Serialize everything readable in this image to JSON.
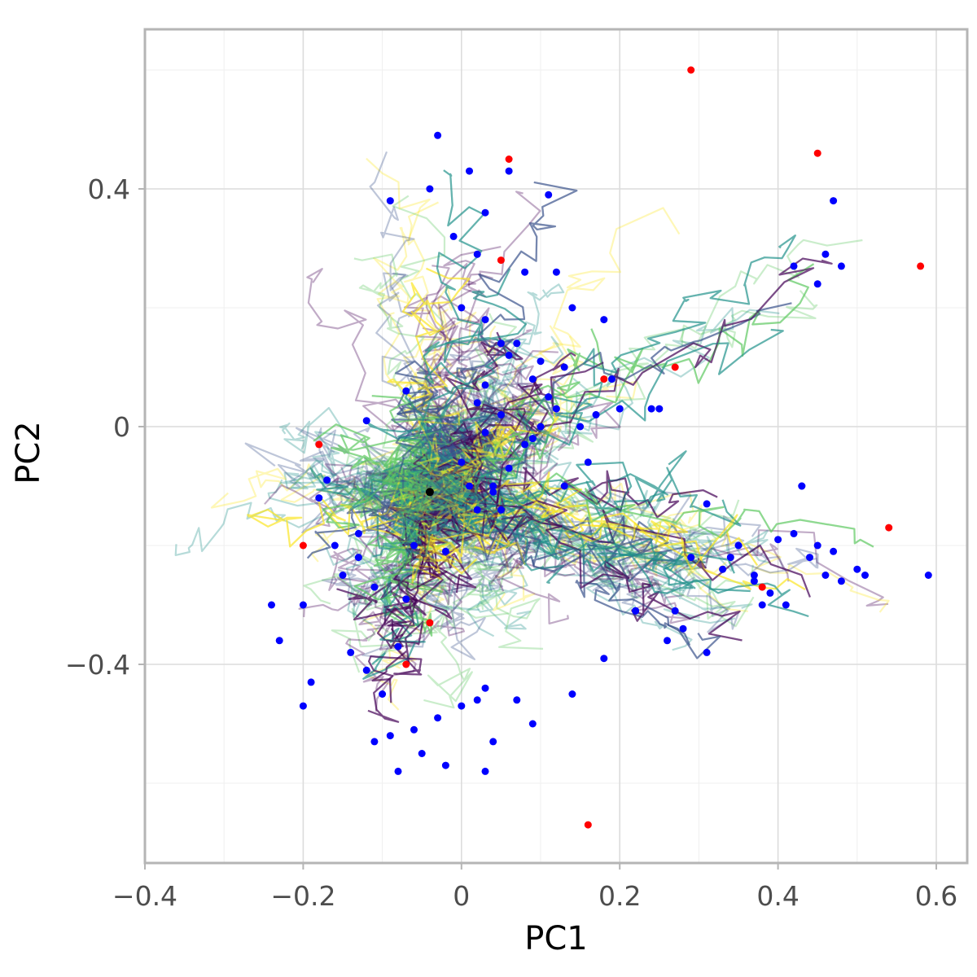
{
  "chart_data": {
    "type": "scatter",
    "title": "",
    "xlabel": "PC1",
    "ylabel": "PC2",
    "xlim": [
      -0.4,
      0.63
    ],
    "ylim": [
      -0.74,
      0.67
    ],
    "x_ticks": [
      -0.4,
      -0.2,
      0,
      0.2,
      0.4,
      0.6
    ],
    "x_tick_labels": [
      "−0.4",
      "−0.2",
      "0",
      "0.2",
      "0.4",
      "0.6"
    ],
    "y_ticks": [
      -0.4,
      0,
      0.4
    ],
    "y_tick_labels": [
      "−0.4",
      "0",
      "0.4"
    ],
    "grid": true,
    "legend": "none",
    "colors": {
      "trajectories_palette": [
        "#440154",
        "#3b528b",
        "#21918c",
        "#5ec962",
        "#fde725"
      ],
      "blue_points": "#0000ff",
      "red_points": "#ff0000",
      "origin_point": "#000000"
    },
    "series": [
      {
        "name": "trajectories",
        "kind": "lines",
        "description_origin": [
          -0.04,
          -0.11
        ],
        "clusters": [
          {
            "center": [
              -0.12,
              -0.12
            ],
            "spread": [
              0.09,
              0.07
            ],
            "weight": 3
          },
          {
            "center": [
              -0.1,
              -0.33
            ],
            "spread": [
              0.07,
              0.1
            ],
            "weight": 3
          },
          {
            "center": [
              0.06,
              0.06
            ],
            "spread": [
              0.07,
              0.09
            ],
            "weight": 3
          },
          {
            "center": [
              0.0,
              0.33
            ],
            "spread": [
              0.08,
              0.07
            ],
            "weight": 1
          },
          {
            "center": [
              0.38,
              -0.25
            ],
            "spread": [
              0.09,
              0.06
            ],
            "weight": 3
          },
          {
            "center": [
              0.45,
              0.27
            ],
            "spread": [
              0.05,
              0.08
            ],
            "weight": 1
          },
          {
            "center": [
              0.1,
              -0.25
            ],
            "spread": [
              0.12,
              0.1
            ],
            "weight": 2
          }
        ]
      },
      {
        "name": "blue_points",
        "kind": "points",
        "x": [
          -0.03,
          0.06,
          0.11,
          -0.09,
          0.01,
          -0.04,
          0.03,
          -0.01,
          0.08,
          0.12,
          0.14,
          0.03,
          0.0,
          0.05,
          0.07,
          0.1,
          0.13,
          0.18,
          0.06,
          0.09,
          0.03,
          -0.07,
          0.02,
          0.11,
          0.05,
          0.12,
          0.15,
          0.17,
          0.19,
          0.2,
          0.24,
          0.0,
          0.08,
          0.04,
          0.13,
          0.16,
          0.06,
          0.09,
          0.03,
          0.1,
          -0.2,
          -0.13,
          -0.18,
          -0.17,
          -0.16,
          -0.15,
          -0.13,
          -0.11,
          -0.07,
          -0.02,
          0.02,
          0.05,
          0.01,
          0.04,
          -0.06,
          -0.24,
          -0.23,
          -0.2,
          -0.19,
          -0.14,
          -0.12,
          -0.1,
          -0.09,
          -0.08,
          -0.06,
          -0.03,
          0.0,
          0.02,
          0.04,
          0.07,
          0.09,
          -0.11,
          -0.05,
          -0.02,
          0.03,
          -0.08,
          0.35,
          0.37,
          0.4,
          0.42,
          0.44,
          0.46,
          0.47,
          0.48,
          0.5,
          0.51,
          0.39,
          0.41,
          0.43,
          0.31,
          0.29,
          0.27,
          0.26,
          0.33,
          0.37,
          0.38,
          0.45,
          0.59,
          0.43,
          0.42,
          0.46,
          0.48,
          0.45,
          0.47,
          0.25,
          0.34,
          0.28,
          0.22,
          0.31,
          0.18,
          0.22,
          -0.12,
          0.02,
          0.14,
          0.03
        ],
        "y": [
          0.49,
          0.43,
          0.39,
          0.38,
          0.43,
          0.4,
          0.36,
          0.32,
          0.26,
          0.26,
          0.2,
          0.18,
          0.2,
          0.14,
          0.14,
          0.11,
          0.1,
          0.18,
          0.12,
          0.08,
          0.07,
          0.06,
          0.04,
          0.05,
          0.02,
          0.03,
          0.0,
          0.02,
          0.08,
          0.03,
          0.03,
          -0.06,
          -0.03,
          -0.1,
          -0.1,
          -0.06,
          -0.07,
          -0.02,
          -0.01,
          0.0,
          -0.3,
          -0.18,
          -0.12,
          -0.09,
          -0.2,
          -0.25,
          -0.22,
          -0.27,
          -0.29,
          -0.21,
          -0.14,
          -0.14,
          -0.1,
          -0.11,
          -0.2,
          -0.3,
          -0.36,
          -0.47,
          -0.43,
          -0.38,
          -0.41,
          -0.45,
          -0.52,
          -0.58,
          -0.51,
          -0.49,
          -0.47,
          -0.46,
          -0.53,
          -0.46,
          -0.5,
          -0.53,
          -0.55,
          -0.57,
          -0.44,
          -0.37,
          -0.2,
          -0.25,
          -0.19,
          -0.18,
          -0.22,
          -0.25,
          -0.21,
          -0.26,
          -0.24,
          -0.25,
          -0.28,
          -0.3,
          -0.1,
          -0.13,
          -0.22,
          -0.31,
          -0.36,
          -0.24,
          -0.26,
          -0.3,
          -0.2,
          -0.25,
          -0.1,
          0.27,
          0.29,
          0.27,
          0.24,
          0.38,
          0.03,
          -0.22,
          -0.34,
          -0.31,
          -0.38,
          -0.39,
          -0.31,
          0.01,
          0.29,
          -0.45,
          -0.58
        ]
      },
      {
        "name": "red_points",
        "kind": "points",
        "x": [
          0.29,
          0.45,
          0.58,
          0.06,
          0.05,
          0.18,
          0.27,
          -0.18,
          -0.2,
          0.54,
          0.38,
          -0.04,
          -0.07,
          0.16
        ],
        "y": [
          0.6,
          0.46,
          0.27,
          0.45,
          0.28,
          0.08,
          0.1,
          -0.03,
          -0.2,
          -0.17,
          -0.27,
          -0.33,
          -0.4,
          -0.67
        ]
      },
      {
        "name": "origin_point",
        "kind": "points",
        "x": [
          -0.04
        ],
        "y": [
          -0.11
        ]
      }
    ]
  }
}
